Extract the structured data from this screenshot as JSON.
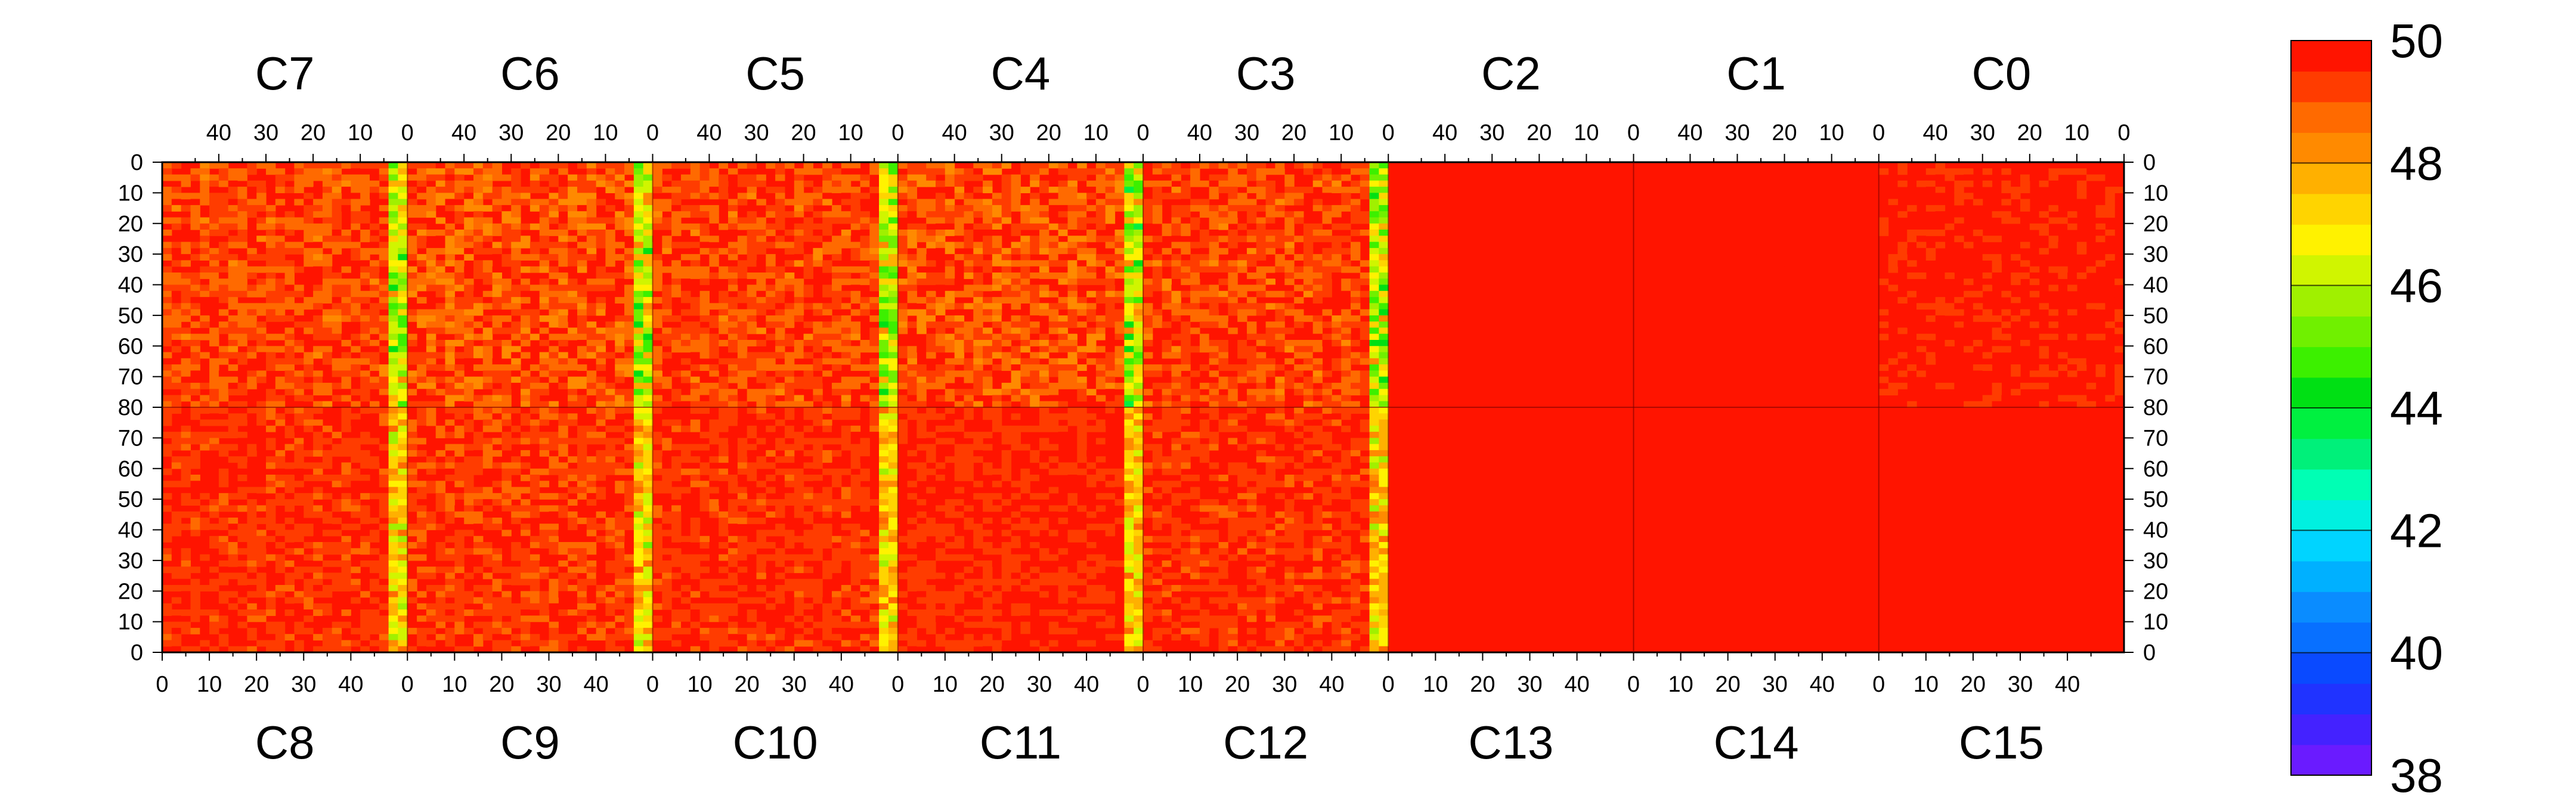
{
  "chart_data": {
    "type": "heatmap",
    "title": "",
    "xlabel": "",
    "ylabel": "",
    "z_range": [
      38,
      50
    ],
    "colorbar": {
      "ticks": [
        50,
        48,
        46,
        44,
        42,
        40,
        38
      ],
      "colors": [
        "#6a1bff",
        "#4422ff",
        "#2033ff",
        "#0a4aff",
        "#0870ff",
        "#0a8cff",
        "#00b0ff",
        "#00d4ff",
        "#00f0e0",
        "#00ffb4",
        "#00f07a",
        "#00f040",
        "#00e014",
        "#3cf000",
        "#70f000",
        "#a0f000",
        "#d0f500",
        "#fff200",
        "#ffd400",
        "#ffb000",
        "#ff8a00",
        "#ff6a00",
        "#ff3c00",
        "#ff1400"
      ],
      "placement": "right"
    },
    "top_chips": [
      "C7",
      "C6",
      "C5",
      "C4",
      "C3",
      "C2",
      "C1",
      "C0"
    ],
    "bottom_chips": [
      "C8",
      "C9",
      "C10",
      "C11",
      "C12",
      "C13",
      "C14",
      "C15"
    ],
    "top_x_ticks": [
      "40",
      "30",
      "20",
      "10",
      "0"
    ],
    "bottom_x_ticks": [
      "0",
      "10",
      "20",
      "30",
      "40"
    ],
    "y_ticks_top_half": [
      "0",
      "10",
      "20",
      "30",
      "40",
      "50",
      "60",
      "70",
      "80"
    ],
    "y_ticks_bottom_half": [
      "70",
      "60",
      "50",
      "40",
      "30",
      "20",
      "10",
      "0"
    ],
    "x_range_per_chip": [
      0,
      52
    ],
    "y_range_per_half": [
      0,
      80
    ],
    "chip_profiles": {
      "C7": {
        "mean": 49.3,
        "low_edge": "right"
      },
      "C6": {
        "mean": 49.2,
        "low_edge": "right"
      },
      "C5": {
        "mean": 49.3,
        "low_edge": "right"
      },
      "C4": {
        "mean": 49.2,
        "low_edge": "right"
      },
      "C3": {
        "mean": 49.3,
        "low_edge": "right"
      },
      "C2": {
        "mean": 49.8,
        "low_edge": "none"
      },
      "C1": {
        "mean": 49.8,
        "low_edge": "none"
      },
      "C0": {
        "mean": 49.7,
        "low_edge": "none"
      },
      "C8": {
        "mean": 49.5,
        "low_edge": "right"
      },
      "C9": {
        "mean": 49.4,
        "low_edge": "right"
      },
      "C10": {
        "mean": 49.5,
        "low_edge": "right"
      },
      "C11": {
        "mean": 49.6,
        "low_edge": "right"
      },
      "C12": {
        "mean": 49.5,
        "low_edge": "right"
      },
      "C13": {
        "mean": 49.9,
        "low_edge": "none"
      },
      "C14": {
        "mean": 50.0,
        "low_edge": "none"
      },
      "C15": {
        "mean": 49.9,
        "low_edge": "none"
      }
    }
  }
}
